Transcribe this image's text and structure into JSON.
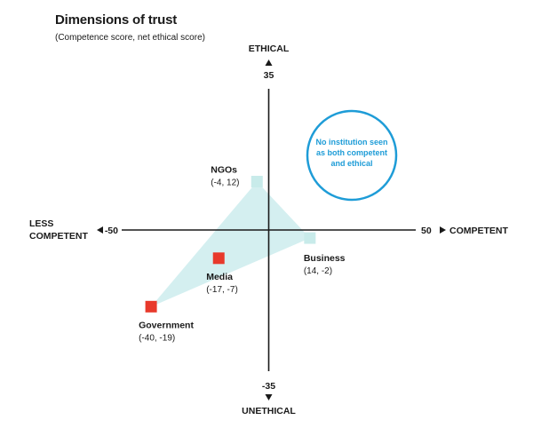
{
  "title": "Dimensions of trust",
  "subtitle": "(Competence score, net ethical score)",
  "colors": {
    "axis": "#1a1a1a",
    "highlight_fill": "#cdeced",
    "teal_marker": "#c8ebea",
    "red_marker": "#e8392b",
    "callout": "#1e9cd7"
  },
  "chart_data": {
    "type": "scatter",
    "title": "Dimensions of trust",
    "subtitle": "(Competence score, net ethical score)",
    "xlim": [
      -50,
      50
    ],
    "ylim": [
      -35,
      35
    ],
    "grid": false,
    "axes": {
      "x_min_label": "-50",
      "x_max_label": "50",
      "y_max_label": "35",
      "y_min_label": "-35",
      "x_neg_title": [
        "LESS",
        "COMPETENT"
      ],
      "x_pos_title": "COMPETENT",
      "y_pos_title": "ETHICAL",
      "y_neg_title": "UNETHICAL"
    },
    "points": [
      {
        "name": "NGOs",
        "x": -4,
        "y": 12,
        "coord_label": "(-4, 12)",
        "color": "teal"
      },
      {
        "name": "Business",
        "x": 14,
        "y": -2,
        "coord_label": "(14, -2)",
        "color": "teal"
      },
      {
        "name": "Media",
        "x": -17,
        "y": -7,
        "coord_label": "(-17, -7)",
        "color": "red"
      },
      {
        "name": "Government",
        "x": -40,
        "y": -19,
        "coord_label": "(-40, -19)",
        "color": "red"
      }
    ],
    "highlight_polygon": [
      "NGOs",
      "Business",
      "Government"
    ],
    "annotation": {
      "text_lines": [
        "No institution seen",
        "as both competent",
        "and ethical"
      ],
      "quadrant": "top-right"
    }
  }
}
